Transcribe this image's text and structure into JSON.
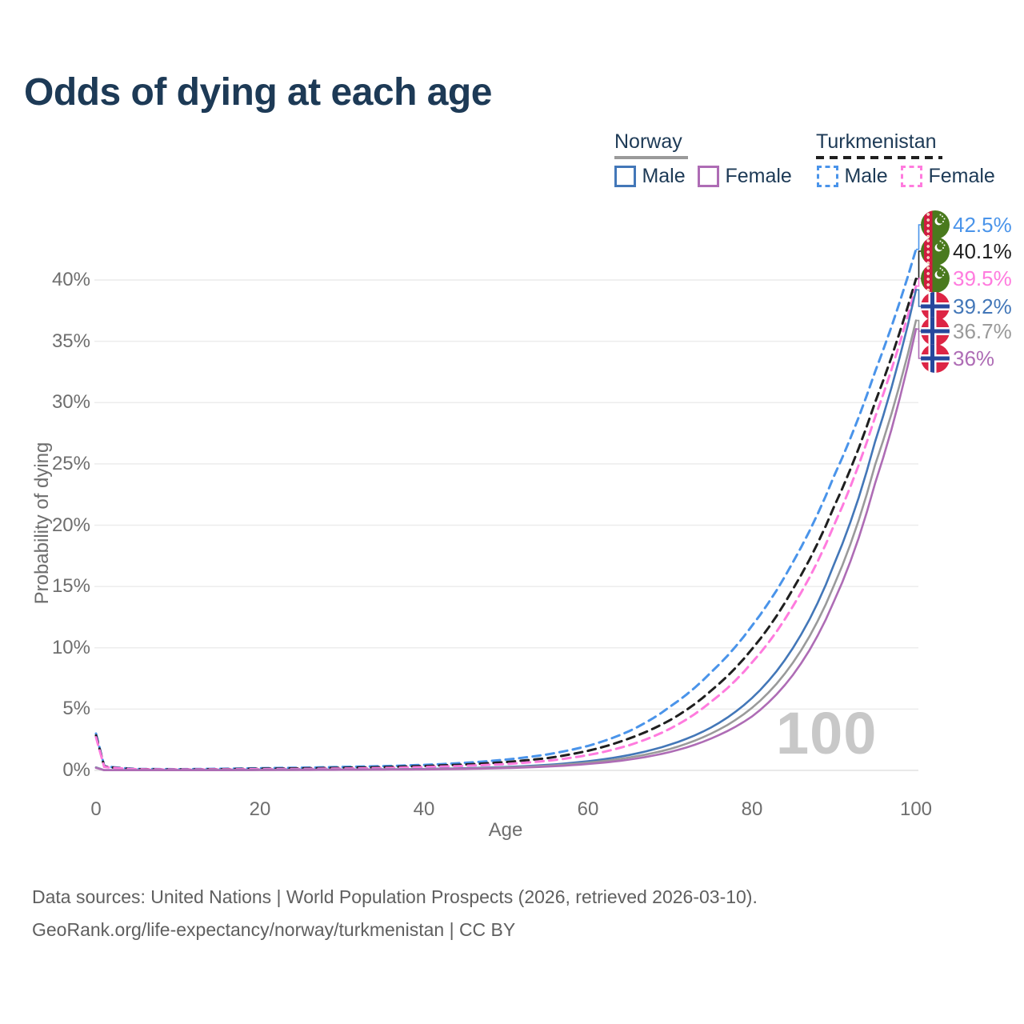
{
  "title": "Odds of dying at each age",
  "legend": {
    "groups": [
      {
        "name": "Norway",
        "line_style": "solid",
        "underline_color": "#9a9a9a",
        "items": [
          {
            "label": "Male",
            "color": "#4377b8"
          },
          {
            "label": "Female",
            "color": "#ae6cb5"
          }
        ]
      },
      {
        "name": "Turkmenistan",
        "line_style": "dashed",
        "underline_color": "#1f1f1f",
        "items": [
          {
            "label": "Male",
            "color": "#4a94ea"
          },
          {
            "label": "Female",
            "color": "#ff7bde"
          }
        ]
      }
    ]
  },
  "end_labels": [
    {
      "value": "42.5%",
      "color": "#4a94ea",
      "country": "Turkmenistan",
      "series": "Turkmenistan Male"
    },
    {
      "value": "40.1%",
      "color": "#1f1f1f",
      "country": "Turkmenistan",
      "series": "Turkmenistan Both sexes"
    },
    {
      "value": "39.5%",
      "color": "#ff7bde",
      "country": "Turkmenistan",
      "series": "Turkmenistan Female"
    },
    {
      "value": "39.2%",
      "color": "#4377b8",
      "country": "Norway",
      "series": "Norway Male"
    },
    {
      "value": "36.7%",
      "color": "#9a9a9a",
      "country": "Norway",
      "series": "Norway Both sexes"
    },
    {
      "value": "36%",
      "color": "#ae6cb5",
      "country": "Norway",
      "series": "Norway Female"
    }
  ],
  "watermark": "100",
  "footer": {
    "line1": "Data sources: United Nations | World Population Prospects (2026, retrieved 2026-03-10).",
    "line2": "GeoRank.org/life-expectancy/norway/turkmenistan | CC BY"
  },
  "chart_data": {
    "type": "line",
    "title": "Odds of dying at each age",
    "xlabel": "Age",
    "ylabel": "Probability of dying",
    "xlim": [
      0,
      100
    ],
    "ylim": [
      0,
      43
    ],
    "grid": "horizontal",
    "legend_position": "top-right",
    "x_ticks": [
      {
        "label": "0",
        "value": 0
      },
      {
        "label": "20",
        "value": 20
      },
      {
        "label": "40",
        "value": 40
      },
      {
        "label": "60",
        "value": 60
      },
      {
        "label": "80",
        "value": 80
      },
      {
        "label": "100",
        "value": 100
      }
    ],
    "y_ticks": [
      {
        "label": "0%",
        "value": 0
      },
      {
        "label": "5%",
        "value": 5
      },
      {
        "label": "10%",
        "value": 10
      },
      {
        "label": "15%",
        "value": 15
      },
      {
        "label": "20%",
        "value": 20
      },
      {
        "label": "25%",
        "value": 25
      },
      {
        "label": "30%",
        "value": 30
      },
      {
        "label": "35%",
        "value": 35
      },
      {
        "label": "40%",
        "value": 40
      }
    ],
    "x": [
      0,
      1,
      5,
      10,
      15,
      20,
      25,
      30,
      35,
      40,
      45,
      50,
      55,
      60,
      65,
      70,
      75,
      80,
      85,
      90,
      95,
      100
    ],
    "series": [
      {
        "name": "Turkmenistan Male",
        "country": "Turkmenistan",
        "sex": "Male",
        "color": "#4a94ea",
        "dash": "dashed",
        "end_label": "42.5%",
        "values": [
          3.0,
          0.35,
          0.12,
          0.1,
          0.13,
          0.18,
          0.22,
          0.28,
          0.35,
          0.45,
          0.62,
          0.88,
          1.3,
          2.0,
          3.2,
          5.2,
          8.0,
          11.8,
          17.0,
          24.0,
          32.5,
          42.5
        ]
      },
      {
        "name": "Turkmenistan Both sexes",
        "country": "Turkmenistan",
        "sex": "Both",
        "color": "#1f1f1f",
        "dash": "dashed",
        "end_label": "40.1%",
        "values": [
          2.85,
          0.32,
          0.1,
          0.08,
          0.1,
          0.14,
          0.17,
          0.21,
          0.27,
          0.36,
          0.48,
          0.68,
          1.0,
          1.6,
          2.6,
          4.1,
          6.5,
          9.9,
          14.8,
          21.5,
          30.0,
          40.1
        ]
      },
      {
        "name": "Turkmenistan Female",
        "country": "Turkmenistan",
        "sex": "Female",
        "color": "#ff7bde",
        "dash": "dashed",
        "end_label": "39.5%",
        "values": [
          2.7,
          0.29,
          0.09,
          0.07,
          0.08,
          0.1,
          0.12,
          0.15,
          0.19,
          0.27,
          0.37,
          0.52,
          0.78,
          1.25,
          2.05,
          3.4,
          5.6,
          8.8,
          13.4,
          20.0,
          28.8,
          39.5
        ]
      },
      {
        "name": "Norway Male",
        "country": "Norway",
        "sex": "Male",
        "color": "#4377b8",
        "dash": "solid",
        "end_label": "39.2%",
        "values": [
          0.25,
          0.02,
          0.01,
          0.01,
          0.03,
          0.05,
          0.06,
          0.07,
          0.09,
          0.12,
          0.18,
          0.28,
          0.45,
          0.75,
          1.25,
          2.1,
          3.5,
          5.9,
          10.0,
          16.8,
          26.8,
          39.2
        ]
      },
      {
        "name": "Norway Both sexes",
        "country": "Norway",
        "sex": "Both",
        "color": "#9a9a9a",
        "dash": "solid",
        "end_label": "36.7%",
        "values": [
          0.23,
          0.018,
          0.009,
          0.009,
          0.025,
          0.04,
          0.05,
          0.06,
          0.08,
          0.1,
          0.15,
          0.24,
          0.38,
          0.63,
          1.05,
          1.75,
          3.0,
          5.1,
          8.8,
          15.1,
          24.9,
          36.7
        ]
      },
      {
        "name": "Norway Female",
        "country": "Norway",
        "sex": "Female",
        "color": "#ae6cb5",
        "dash": "solid",
        "end_label": "36%",
        "values": [
          0.2,
          0.016,
          0.008,
          0.008,
          0.02,
          0.03,
          0.04,
          0.05,
          0.06,
          0.08,
          0.12,
          0.19,
          0.31,
          0.52,
          0.88,
          1.5,
          2.6,
          4.4,
          7.8,
          13.8,
          23.4,
          36.0
        ]
      }
    ]
  }
}
